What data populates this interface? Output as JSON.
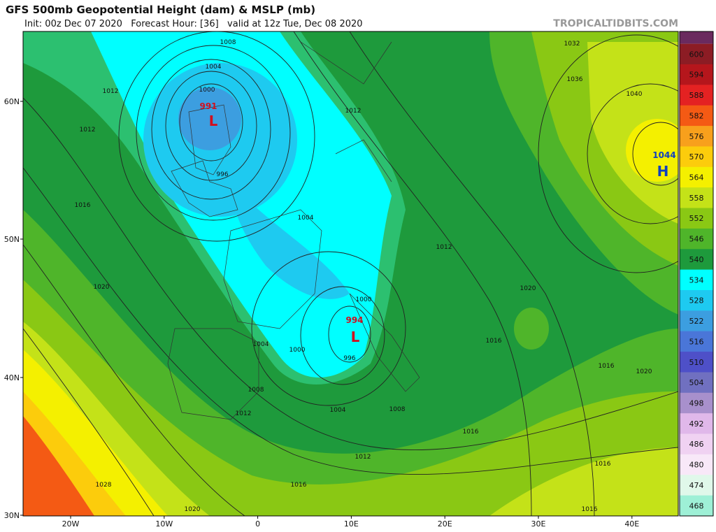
{
  "header": {
    "title": "GFS 500mb Geopotential Height (dam) & MSLP (mb)",
    "subtitle": "Init: 00z Dec 07 2020   Forecast Hour: [36]   valid at 12z Tue, Dec 08 2020",
    "site": "TROPICALTIDBITS.COM"
  },
  "axes": {
    "lat_labels": [
      "60N",
      "50N",
      "40N",
      "30N"
    ],
    "lon_labels": [
      "20W",
      "10W",
      "0",
      "10E",
      "20E",
      "30E",
      "40E"
    ]
  },
  "colorbar": {
    "levels": [
      {
        "label": "600",
        "color": "#8c1c24"
      },
      {
        "label": "594",
        "color": "#b5161c"
      },
      {
        "label": "588",
        "color": "#e42222"
      },
      {
        "label": "582",
        "color": "#f45a14"
      },
      {
        "label": "576",
        "color": "#f8a01c"
      },
      {
        "label": "570",
        "color": "#fccc0c"
      },
      {
        "label": "564",
        "color": "#f4f000"
      },
      {
        "label": "558",
        "color": "#c4e218"
      },
      {
        "label": "552",
        "color": "#8ac814"
      },
      {
        "label": "546",
        "color": "#4fb52a"
      },
      {
        "label": "540",
        "color": "#1e9a3c"
      },
      {
        "label": "534",
        "color": "#00ffff"
      },
      {
        "label": "528",
        "color": "#1ecaf0"
      },
      {
        "label": "522",
        "color": "#3c9ee0"
      },
      {
        "label": "516",
        "color": "#4a76d8"
      },
      {
        "label": "510",
        "color": "#4e50c8"
      },
      {
        "label": "504",
        "color": "#7070c0"
      },
      {
        "label": "498",
        "color": "#a890cc"
      },
      {
        "label": "492",
        "color": "#e0b8ea"
      },
      {
        "label": "486",
        "color": "#f0d2f2"
      },
      {
        "label": "480",
        "color": "#f8e8f8"
      },
      {
        "label": "474",
        "color": "#e0f8ea"
      },
      {
        "label": "468",
        "color": "#9ef0d6"
      }
    ]
  },
  "pressure_centers": [
    {
      "value": "991",
      "letter": "L"
    },
    {
      "value": "994",
      "letter": "L"
    },
    {
      "value": "1044",
      "letter": "H"
    }
  ],
  "isobar_labels": [
    "1008",
    "1004",
    "1000",
    "1012",
    "1012",
    "996",
    "1016",
    "1004",
    "1012",
    "1012",
    "1020",
    "1000",
    "1004",
    "1000",
    "996",
    "1008",
    "1012",
    "1004",
    "1008",
    "1016",
    "1012",
    "1016",
    "1028",
    "1020",
    "1016",
    "1020",
    "1016",
    "1020",
    "1016",
    "1016",
    "1032",
    "1036",
    "1040"
  ]
}
